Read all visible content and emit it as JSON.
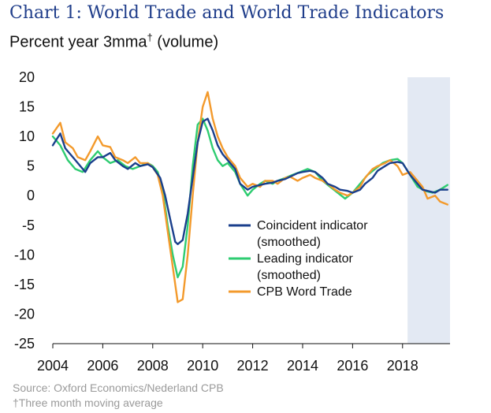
{
  "chart_data": {
    "type": "line",
    "title": "Chart 1: World Trade and World Trade Indicators",
    "subtitle_prefix": "Percent year 3mma",
    "subtitle_mark": "†",
    "subtitle_suffix": " (volume)",
    "xlabel": "",
    "ylabel": "",
    "xlim": [
      2004,
      2019.9
    ],
    "ylim": [
      -25,
      20
    ],
    "x_ticks": [
      2004,
      2006,
      2008,
      2010,
      2012,
      2014,
      2016,
      2018
    ],
    "x_tick_labels": [
      "2004",
      "2006",
      "2008",
      "2010",
      "2012",
      "2014",
      "2016",
      "2018"
    ],
    "y_ticks": [
      20,
      15,
      10,
      5,
      0,
      -5,
      -10,
      -15,
      -20,
      -25
    ],
    "y_tick_labels": [
      "20",
      "15",
      "10",
      "5",
      "0",
      "-5",
      "-10",
      "-15",
      "-20",
      "-25"
    ],
    "shaded_region": {
      "from": 2018.2,
      "to": 2019.9,
      "color": "#e3e9f3"
    },
    "legend_position": "center-right",
    "series": [
      {
        "name_lines": [
          "Coincident indicator",
          "(smoothed)"
        ],
        "color": "#1a3f8c",
        "x": [
          2004.0,
          2004.3,
          2004.5,
          2004.8,
          2005.0,
          2005.3,
          2005.5,
          2005.8,
          2006.0,
          2006.3,
          2006.5,
          2006.8,
          2007.0,
          2007.3,
          2007.5,
          2007.8,
          2008.0,
          2008.3,
          2008.5,
          2008.7,
          2008.9,
          2009.0,
          2009.2,
          2009.4,
          2009.6,
          2009.8,
          2010.0,
          2010.2,
          2010.4,
          2010.6,
          2010.8,
          2011.0,
          2011.3,
          2011.5,
          2011.8,
          2012.0,
          2012.3,
          2012.5,
          2012.8,
          2013.0,
          2013.3,
          2013.5,
          2013.8,
          2014.0,
          2014.3,
          2014.5,
          2014.8,
          2015.0,
          2015.3,
          2015.5,
          2015.8,
          2016.0,
          2016.3,
          2016.5,
          2016.8,
          2017.0,
          2017.3,
          2017.5,
          2017.8,
          2018.0,
          2018.3,
          2018.5,
          2018.8,
          2019.0,
          2019.3,
          2019.5,
          2019.8
        ],
        "values": [
          8.5,
          10.5,
          8.0,
          6.5,
          5.5,
          4.0,
          5.5,
          6.5,
          6.5,
          7.2,
          6.0,
          5.0,
          4.5,
          5.5,
          5.0,
          5.3,
          4.8,
          3.0,
          0.0,
          -4.0,
          -7.8,
          -8.2,
          -7.5,
          -3.0,
          3.0,
          9.0,
          12.5,
          13.0,
          11.0,
          8.5,
          7.0,
          6.0,
          4.5,
          2.0,
          1.0,
          1.5,
          1.8,
          2.0,
          2.2,
          2.5,
          2.8,
          3.2,
          3.8,
          4.0,
          4.2,
          4.0,
          3.0,
          2.0,
          1.5,
          1.0,
          0.8,
          0.5,
          1.0,
          2.0,
          3.0,
          4.2,
          5.0,
          5.5,
          5.7,
          5.5,
          3.5,
          2.5,
          1.0,
          0.8,
          0.5,
          1.0,
          1.0
        ]
      },
      {
        "name_lines": [
          "Leading indicator",
          "(smoothed)"
        ],
        "color": "#2ecc71",
        "x": [
          2004.0,
          2004.3,
          2004.6,
          2004.9,
          2005.2,
          2005.5,
          2005.8,
          2006.0,
          2006.3,
          2006.6,
          2006.9,
          2007.2,
          2007.5,
          2007.8,
          2008.0,
          2008.2,
          2008.4,
          2008.6,
          2008.8,
          2009.0,
          2009.2,
          2009.4,
          2009.6,
          2009.8,
          2010.0,
          2010.2,
          2010.4,
          2010.6,
          2010.8,
          2011.0,
          2011.3,
          2011.5,
          2011.8,
          2012.0,
          2012.3,
          2012.5,
          2012.8,
          2013.0,
          2013.3,
          2013.6,
          2013.9,
          2014.2,
          2014.5,
          2014.8,
          2015.1,
          2015.4,
          2015.7,
          2016.0,
          2016.3,
          2016.6,
          2016.9,
          2017.2,
          2017.5,
          2017.8,
          2018.0,
          2018.3,
          2018.6,
          2018.9,
          2019.2,
          2019.5,
          2019.8
        ],
        "values": [
          10.0,
          8.5,
          6.0,
          4.5,
          4.0,
          6.0,
          7.5,
          6.5,
          5.5,
          6.0,
          5.0,
          4.5,
          5.0,
          5.5,
          5.0,
          4.0,
          1.0,
          -5.0,
          -10.0,
          -13.8,
          -12.0,
          -5.0,
          5.0,
          12.0,
          13.0,
          11.0,
          8.0,
          6.0,
          5.0,
          5.5,
          4.0,
          2.0,
          0.0,
          1.0,
          2.0,
          2.5,
          2.0,
          2.5,
          3.0,
          3.5,
          4.0,
          4.5,
          4.0,
          2.5,
          1.5,
          0.5,
          -0.5,
          0.5,
          2.0,
          3.5,
          4.5,
          5.5,
          6.0,
          6.2,
          5.5,
          3.5,
          1.5,
          0.8,
          0.5,
          1.0,
          1.8
        ]
      },
      {
        "name_lines": [
          "CPB Word Trade"
        ],
        "color": "#f39a2c",
        "x": [
          2004.0,
          2004.3,
          2004.5,
          2004.8,
          2005.0,
          2005.3,
          2005.5,
          2005.8,
          2006.0,
          2006.3,
          2006.5,
          2006.8,
          2007.0,
          2007.3,
          2007.5,
          2007.8,
          2008.0,
          2008.2,
          2008.4,
          2008.6,
          2008.8,
          2009.0,
          2009.2,
          2009.4,
          2009.6,
          2009.8,
          2010.0,
          2010.2,
          2010.4,
          2010.6,
          2010.8,
          2011.0,
          2011.3,
          2011.5,
          2011.8,
          2012.0,
          2012.3,
          2012.5,
          2012.8,
          2013.0,
          2013.3,
          2013.5,
          2013.8,
          2014.0,
          2014.3,
          2014.5,
          2014.8,
          2015.0,
          2015.3,
          2015.5,
          2015.8,
          2016.0,
          2016.3,
          2016.5,
          2016.8,
          2017.0,
          2017.3,
          2017.5,
          2017.8,
          2018.0,
          2018.3,
          2018.5,
          2018.8,
          2019.0,
          2019.3,
          2019.5,
          2019.8
        ],
        "values": [
          10.5,
          12.3,
          9.0,
          8.0,
          6.5,
          6.0,
          7.5,
          10.0,
          8.5,
          8.2,
          6.5,
          6.0,
          5.5,
          6.5,
          5.5,
          5.5,
          4.8,
          3.5,
          0.0,
          -6.0,
          -12.0,
          -18.0,
          -17.5,
          -10.0,
          0.0,
          9.0,
          15.0,
          17.5,
          13.0,
          10.0,
          8.0,
          6.5,
          5.0,
          3.0,
          1.5,
          2.0,
          1.5,
          2.5,
          2.5,
          2.0,
          3.0,
          3.2,
          2.5,
          3.0,
          3.5,
          3.0,
          2.5,
          2.0,
          1.0,
          0.5,
          0.0,
          0.5,
          1.5,
          3.0,
          4.5,
          5.0,
          5.5,
          6.0,
          5.0,
          3.5,
          4.0,
          3.0,
          1.5,
          -0.5,
          0.0,
          -1.0,
          -1.5
        ]
      }
    ]
  },
  "footer": {
    "source": "Source: Oxford Economics/Nederland CPB",
    "footnote": "†Three month moving average"
  }
}
